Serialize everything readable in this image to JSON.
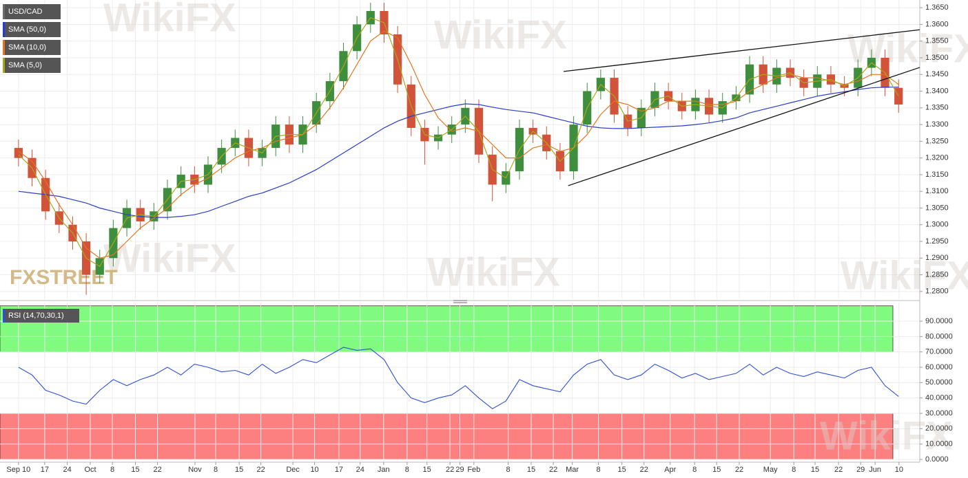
{
  "chart_data": [
    {
      "type": "candlestick",
      "title": "USD/CAD",
      "watermark": "WikiFX",
      "logo": "FXSTREET",
      "up_color": "#3e8e3e",
      "down_color": "#d0533a",
      "grid": true,
      "x": [
        0,
        3,
        6,
        9,
        12,
        15,
        18,
        21,
        24,
        27,
        30,
        33,
        36,
        39,
        42,
        45,
        48,
        51,
        54,
        57,
        60,
        63,
        66,
        69,
        72,
        75,
        78,
        81,
        84,
        87,
        90,
        93,
        96,
        99,
        102,
        105,
        108,
        111,
        114,
        117,
        120,
        123,
        126,
        129,
        132,
        135,
        138,
        141,
        144,
        147,
        150,
        153,
        156,
        159,
        162,
        165,
        168,
        171,
        174,
        177,
        180,
        183,
        186,
        189,
        192,
        195
      ],
      "open": [
        1.323,
        1.32,
        1.314,
        1.304,
        1.3,
        1.295,
        1.285,
        1.29,
        1.299,
        1.305,
        1.301,
        1.304,
        1.311,
        1.315,
        1.312,
        1.318,
        1.323,
        1.326,
        1.32,
        1.323,
        1.33,
        1.324,
        1.33,
        1.337,
        1.343,
        1.352,
        1.36,
        1.364,
        1.357,
        1.342,
        1.329,
        1.325,
        1.327,
        1.33,
        1.335,
        1.321,
        1.312,
        1.316,
        1.329,
        1.327,
        1.322,
        1.316,
        1.33,
        1.34,
        1.344,
        1.333,
        1.329,
        1.335,
        1.34,
        1.337,
        1.334,
        1.338,
        1.333,
        1.337,
        1.339,
        1.348,
        1.342,
        1.347,
        1.344,
        1.341,
        1.345,
        1.342,
        1.341,
        1.347,
        1.35,
        1.341
      ],
      "high": [
        1.3255,
        1.3225,
        1.3165,
        1.3065,
        1.3025,
        1.2975,
        1.2925,
        1.3015,
        1.3075,
        1.3075,
        1.3065,
        1.3135,
        1.3175,
        1.3175,
        1.3205,
        1.3255,
        1.3285,
        1.3285,
        1.3255,
        1.3325,
        1.3325,
        1.3325,
        1.3395,
        1.3455,
        1.3545,
        1.3625,
        1.3665,
        1.3665,
        1.3595,
        1.3445,
        1.3315,
        1.3295,
        1.3325,
        1.3375,
        1.3375,
        1.3235,
        1.3185,
        1.3315,
        1.3315,
        1.3295,
        1.3245,
        1.3325,
        1.3425,
        1.3465,
        1.3465,
        1.3355,
        1.3375,
        1.3425,
        1.3425,
        1.3395,
        1.3405,
        1.3405,
        1.3395,
        1.3415,
        1.3505,
        1.3505,
        1.3495,
        1.3495,
        1.3465,
        1.3475,
        1.3475,
        1.3445,
        1.3495,
        1.3525,
        1.3525,
        1.3435
      ],
      "low": [
        1.3175,
        1.3115,
        1.3015,
        1.2975,
        1.2925,
        1.279,
        1.2825,
        1.2875,
        1.2965,
        1.2985,
        1.2985,
        1.3015,
        1.3085,
        1.3095,
        1.3095,
        1.3155,
        1.3205,
        1.3175,
        1.3175,
        1.3205,
        1.3215,
        1.3215,
        1.3275,
        1.3345,
        1.3405,
        1.3495,
        1.3575,
        1.3545,
        1.3395,
        1.3265,
        1.318,
        1.3225,
        1.3245,
        1.3275,
        1.3185,
        1.307,
        1.3095,
        1.3135,
        1.3245,
        1.3195,
        1.3135,
        1.3135,
        1.3275,
        1.3375,
        1.3305,
        1.3265,
        1.3265,
        1.3325,
        1.3345,
        1.3315,
        1.3315,
        1.3305,
        1.3305,
        1.3345,
        1.3365,
        1.3395,
        1.3395,
        1.3415,
        1.3385,
        1.3385,
        1.3395,
        1.3385,
        1.3385,
        1.3445,
        1.3385,
        1.3335
      ],
      "close": [
        1.32,
        1.314,
        1.304,
        1.3,
        1.295,
        1.285,
        1.29,
        1.299,
        1.305,
        1.301,
        1.304,
        1.311,
        1.315,
        1.312,
        1.318,
        1.323,
        1.326,
        1.32,
        1.323,
        1.33,
        1.324,
        1.33,
        1.337,
        1.343,
        1.352,
        1.36,
        1.364,
        1.357,
        1.342,
        1.329,
        1.325,
        1.327,
        1.33,
        1.335,
        1.321,
        1.312,
        1.316,
        1.329,
        1.327,
        1.322,
        1.316,
        1.33,
        1.34,
        1.344,
        1.333,
        1.329,
        1.335,
        1.34,
        1.337,
        1.334,
        1.338,
        1.333,
        1.337,
        1.339,
        1.348,
        1.342,
        1.347,
        1.344,
        1.341,
        1.345,
        1.342,
        1.341,
        1.347,
        1.35,
        1.341,
        1.336
      ],
      "overlays": [
        {
          "name": "SMA (50,0)",
          "color": "#2a3ccc",
          "values": [
            1.31,
            1.3095,
            1.309,
            1.3085,
            1.3075,
            1.3065,
            1.305,
            1.304,
            1.303,
            1.3025,
            1.3022,
            1.3022,
            1.3025,
            1.303,
            1.304,
            1.3055,
            1.307,
            1.3085,
            1.3095,
            1.311,
            1.3125,
            1.3145,
            1.3165,
            1.319,
            1.3215,
            1.324,
            1.3265,
            1.329,
            1.331,
            1.3325,
            1.3335,
            1.3345,
            1.3355,
            1.3362,
            1.336,
            1.3352,
            1.3345,
            1.334,
            1.3335,
            1.3325,
            1.3315,
            1.3305,
            1.3295,
            1.329,
            1.3288,
            1.3288,
            1.329,
            1.3292,
            1.3294,
            1.3296,
            1.33,
            1.3305,
            1.3312,
            1.332,
            1.3335,
            1.3345,
            1.3355,
            1.3365,
            1.3375,
            1.3385,
            1.3392,
            1.3398,
            1.3405,
            1.341,
            1.3412,
            1.3412
          ]
        },
        {
          "name": "SMA (10,0)",
          "color": "#e2761f",
          "values": [
            1.322,
            1.319,
            1.313,
            1.306,
            1.3,
            1.293,
            1.29,
            1.291,
            1.295,
            1.299,
            1.302,
            1.305,
            1.309,
            1.312,
            1.314,
            1.317,
            1.32,
            1.322,
            1.323,
            1.325,
            1.326,
            1.327,
            1.33,
            1.335,
            1.341,
            1.348,
            1.355,
            1.358,
            1.356,
            1.348,
            1.339,
            1.332,
            1.328,
            1.329,
            1.328,
            1.324,
            1.32,
            1.32,
            1.323,
            1.324,
            1.322,
            1.323,
            1.327,
            1.333,
            1.337,
            1.336,
            1.334,
            1.335,
            1.337,
            1.337,
            1.337,
            1.336,
            1.336,
            1.337,
            1.34,
            1.342,
            1.344,
            1.345,
            1.344,
            1.344,
            1.343,
            1.342,
            1.343,
            1.345,
            1.345,
            1.342
          ]
        },
        {
          "name": "SMA (5,0)",
          "color": "#a9a71c",
          "values": [
            1.321,
            1.317,
            1.309,
            1.302,
            1.2975,
            1.29,
            1.2875,
            1.2945,
            1.302,
            1.303,
            1.3025,
            1.3075,
            1.313,
            1.3135,
            1.315,
            1.3205,
            1.3245,
            1.323,
            1.3215,
            1.3265,
            1.327,
            1.327,
            1.3335,
            1.34,
            1.3475,
            1.356,
            1.362,
            1.3605,
            1.3495,
            1.3355,
            1.327,
            1.326,
            1.3285,
            1.3325,
            1.328,
            1.3165,
            1.314,
            1.3225,
            1.328,
            1.3245,
            1.319,
            1.323,
            1.335,
            1.342,
            1.3385,
            1.331,
            1.332,
            1.3375,
            1.3385,
            1.3355,
            1.336,
            1.3355,
            1.335,
            1.338,
            1.3435,
            1.345,
            1.3445,
            1.3455,
            1.3425,
            1.343,
            1.3435,
            1.3415,
            1.344,
            1.3485,
            1.3455,
            1.3385
          ]
        }
      ],
      "trendlines": [
        {
          "x": [
            120.8,
            199.7
          ],
          "y": [
            1.3459,
            1.3584
          ]
        },
        {
          "x": [
            121.8,
            199.7
          ],
          "y": [
            1.3117,
            1.3471
          ]
        }
      ],
      "xlim": [
        -4.1,
        199.7
      ],
      "ylim": [
        1.2777,
        1.3673
      ],
      "yticks": [
        {
          "value": 1.28,
          "label": "1.2800"
        },
        {
          "value": 1.285,
          "label": "1.2850"
        },
        {
          "value": 1.29,
          "label": "1.2900"
        },
        {
          "value": 1.295,
          "label": "1.2950"
        },
        {
          "value": 1.3,
          "label": "1.3000"
        },
        {
          "value": 1.305,
          "label": "1.3050"
        },
        {
          "value": 1.31,
          "label": "1.3100"
        },
        {
          "value": 1.315,
          "label": "1.3150"
        },
        {
          "value": 1.32,
          "label": "1.3200"
        },
        {
          "value": 1.325,
          "label": "1.3250"
        },
        {
          "value": 1.33,
          "label": "1.3300"
        },
        {
          "value": 1.335,
          "label": "1.3350"
        },
        {
          "value": 1.34,
          "label": "1.3400"
        },
        {
          "value": 1.345,
          "label": "1.3450"
        },
        {
          "value": 1.35,
          "label": "1.3500"
        },
        {
          "value": 1.355,
          "label": "1.3550"
        },
        {
          "value": 1.36,
          "label": "1.3600"
        },
        {
          "value": 1.365,
          "label": "1.3650"
        }
      ]
    },
    {
      "type": "line",
      "title": "RSI (14,70,30,1)",
      "color": "#2f4fd8",
      "grid": true,
      "x": [
        0,
        3,
        6,
        9,
        12,
        15,
        18,
        21,
        24,
        27,
        30,
        33,
        36,
        39,
        42,
        45,
        48,
        51,
        54,
        57,
        60,
        63,
        66,
        69,
        72,
        75,
        78,
        81,
        84,
        87,
        90,
        93,
        96,
        99,
        102,
        105,
        108,
        111,
        114,
        117,
        120,
        123,
        126,
        129,
        132,
        135,
        138,
        141,
        144,
        147,
        150,
        153,
        156,
        159,
        162,
        165,
        168,
        171,
        174,
        177,
        180,
        183,
        186,
        189,
        192,
        195
      ],
      "values": [
        60,
        55,
        45,
        42,
        38,
        36,
        45,
        52,
        48,
        52,
        55,
        60,
        55,
        62,
        60,
        57,
        58,
        55,
        62,
        56,
        60,
        65,
        63,
        68,
        73,
        71,
        72,
        65,
        50,
        40,
        37,
        40,
        42,
        48,
        40,
        33,
        38,
        52,
        48,
        46,
        44,
        55,
        62,
        65,
        55,
        52,
        55,
        62,
        58,
        53,
        56,
        52,
        54,
        56,
        62,
        55,
        60,
        56,
        54,
        57,
        55,
        53,
        58,
        60,
        48,
        41
      ],
      "bands": [
        {
          "from": 70,
          "to": 100,
          "color": "#80fb80"
        },
        {
          "from": 0,
          "to": 30,
          "color": "#fd8080"
        }
      ],
      "xlim": [
        -4.1,
        199.7
      ],
      "ylim": [
        -1.8,
        102.1
      ],
      "yticks": [
        {
          "value": 0,
          "label": "0.0000"
        },
        {
          "value": 10,
          "label": "10.0000"
        },
        {
          "value": 20,
          "label": "20.0000"
        },
        {
          "value": 30,
          "label": "30.0000"
        },
        {
          "value": 40,
          "label": "40.0000"
        },
        {
          "value": 50,
          "label": "50.0000"
        },
        {
          "value": 60,
          "label": "60.0000"
        },
        {
          "value": 70,
          "label": "70.0000"
        },
        {
          "value": 80,
          "label": "80.0000"
        },
        {
          "value": 90,
          "label": "90.0000"
        }
      ],
      "xticks": [
        {
          "value": 0,
          "label": "Sep 10"
        },
        {
          "value": 5.8,
          "label": "17"
        },
        {
          "value": 10.8,
          "label": "24"
        },
        {
          "value": 15.9,
          "label": "Oct"
        },
        {
          "value": 20.8,
          "label": "8"
        },
        {
          "value": 25.9,
          "label": "15"
        },
        {
          "value": 30.8,
          "label": "22"
        },
        {
          "value": 39.1,
          "label": "Nov"
        },
        {
          "value": 43.7,
          "label": "8"
        },
        {
          "value": 48.9,
          "label": "15"
        },
        {
          "value": 53.7,
          "label": "22"
        },
        {
          "value": 60.8,
          "label": "Dec"
        },
        {
          "value": 65.6,
          "label": "10"
        },
        {
          "value": 71.0,
          "label": "17"
        },
        {
          "value": 75.7,
          "label": "24"
        },
        {
          "value": 80.9,
          "label": "Jan"
        },
        {
          "value": 86.1,
          "label": "8"
        },
        {
          "value": 90.5,
          "label": "15"
        },
        {
          "value": 95.6,
          "label": "22"
        },
        {
          "value": 97.8,
          "label": "29"
        },
        {
          "value": 100.9,
          "label": "Feb"
        },
        {
          "value": 108.5,
          "label": "8"
        },
        {
          "value": 113.6,
          "label": "15"
        },
        {
          "value": 118.5,
          "label": "22"
        },
        {
          "value": 122.7,
          "label": "Mar"
        },
        {
          "value": 128.5,
          "label": "8"
        },
        {
          "value": 133.7,
          "label": "15"
        },
        {
          "value": 138.6,
          "label": "22"
        },
        {
          "value": 144.4,
          "label": "Apr"
        },
        {
          "value": 149.8,
          "label": "8"
        },
        {
          "value": 154.7,
          "label": "15"
        },
        {
          "value": 159.7,
          "label": "22"
        },
        {
          "value": 166.6,
          "label": "May"
        },
        {
          "value": 171.8,
          "label": "8"
        },
        {
          "value": 176.5,
          "label": "15"
        },
        {
          "value": 181.7,
          "label": "22"
        },
        {
          "value": 186.6,
          "label": "29"
        },
        {
          "value": 189.8,
          "label": "Jun"
        },
        {
          "value": 195.1,
          "label": "10"
        }
      ]
    }
  ]
}
